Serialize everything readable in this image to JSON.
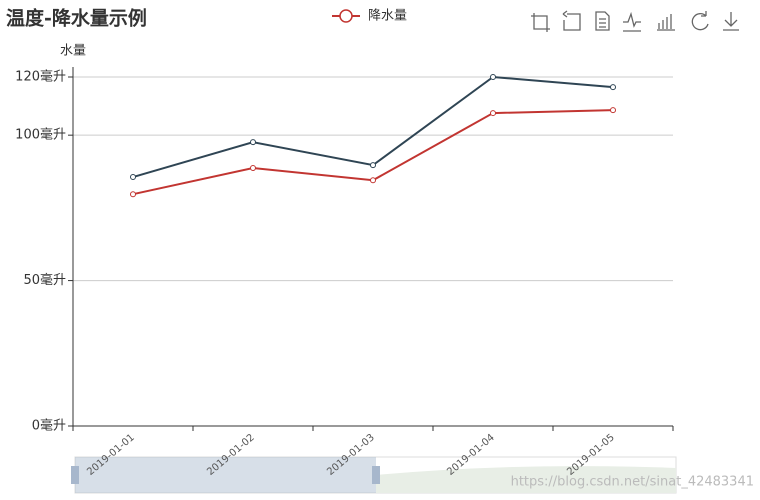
{
  "chart_data": {
    "type": "line",
    "title": "温度-降水量示例",
    "y_axis_label": "水量",
    "categories": [
      "2019-01-01",
      "2019-01-02",
      "2019-01-03",
      "2019-01-04",
      "2019-01-05"
    ],
    "series": [
      {
        "name": "降水量",
        "color": "#c23531",
        "values": [
          79.7,
          88.7,
          84.5,
          107.6,
          108.6
        ]
      },
      {
        "color": "#2f4554",
        "values": [
          85.6,
          97.6,
          89.7,
          120,
          116.5
        ]
      }
    ],
    "ylim": [
      0,
      120
    ],
    "yticks": [
      {
        "value": 0,
        "label": "0毫升"
      },
      {
        "value": 50,
        "label": "50毫升"
      },
      {
        "value": 100,
        "label": "100毫升"
      },
      {
        "value": 120,
        "label": "120毫升"
      }
    ],
    "grid": true,
    "watermark": "https://blog.csdn.net/sinat_42483341"
  }
}
